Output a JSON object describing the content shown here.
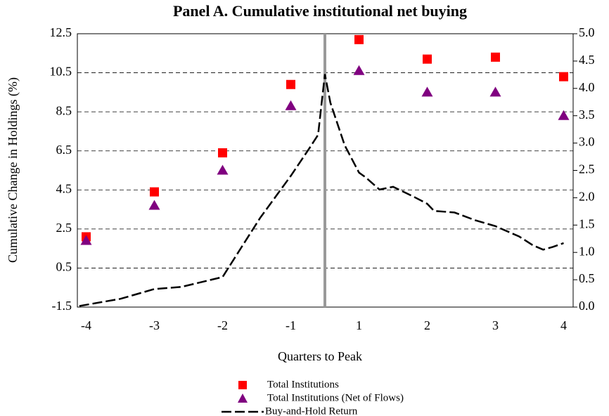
{
  "chart_data": {
    "type": "scatter",
    "title": "Panel A. Cumulative institutional net buying",
    "xlabel": "Quarters to Peak",
    "ylabel": "Cumulative Change in Holdings (%)",
    "categories": [
      "-4",
      "-3",
      "-2",
      "-1",
      "1",
      "2",
      "3",
      "4"
    ],
    "series": [
      {
        "name": "Total Institutions",
        "color": "#ff0000",
        "marker": "square",
        "values": [
          2.1,
          4.4,
          6.4,
          9.9,
          12.2,
          11.2,
          11.3,
          10.3
        ]
      },
      {
        "name": "Total Institutions (Net of Flows)",
        "color": "#800080",
        "marker": "triangle",
        "values": [
          1.9,
          3.7,
          5.5,
          8.8,
          10.6,
          9.5,
          9.5,
          8.3
        ]
      },
      {
        "name": "Buy-and-Hold Return",
        "color": "#000000",
        "marker": "dashed-line",
        "axis": "y2",
        "x": [
          -4.1,
          -3.5,
          -3.0,
          -2.6,
          -2.0,
          -1.45,
          -1.0,
          -0.73,
          -0.6,
          0.0,
          0.58,
          0.79,
          1.0,
          1.1,
          1.3,
          1.5,
          1.8,
          2.0,
          2.1,
          2.4,
          2.7,
          3.0,
          3.35,
          3.55,
          3.7,
          3.84,
          4.0
        ],
        "values": [
          0.02,
          0.15,
          0.33,
          0.37,
          0.55,
          1.63,
          2.4,
          2.9,
          3.15,
          4.26,
          3.74,
          2.96,
          2.46,
          2.37,
          2.15,
          2.2,
          2.02,
          1.89,
          1.76,
          1.73,
          1.59,
          1.48,
          1.29,
          1.13,
          1.05,
          1.1,
          1.17
        ]
      }
    ],
    "ylim": [
      -1.5,
      12.5
    ],
    "yticks": [
      -1.5,
      0.5,
      2.5,
      4.5,
      6.5,
      8.5,
      10.5,
      12.5
    ],
    "y2lim": [
      0,
      5
    ],
    "y2ticks": [
      {
        "value": 0,
        "label": "0.0"
      },
      0.5,
      {
        "value": 1,
        "label": "1.0"
      },
      1.5,
      {
        "value": 2,
        "label": "2.0"
      },
      2.5,
      {
        "value": 3,
        "label": "3.0"
      },
      3.5,
      {
        "value": 4,
        "label": "4.0"
      },
      4.5,
      {
        "value": 5,
        "label": "5.0"
      }
    ],
    "grid": true
  }
}
